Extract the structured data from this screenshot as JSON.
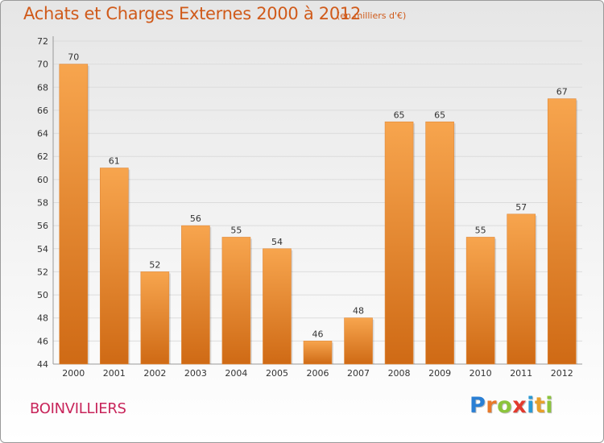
{
  "header": {
    "title": "Achats et Charges Externes 2000 à 2012",
    "subtitle": "(en milliers d'€)"
  },
  "footer": {
    "location": "BOINVILLIERS",
    "brand_letters": [
      {
        "char": "P",
        "color": "#2a7fd4"
      },
      {
        "char": "r",
        "color": "#e8792a"
      },
      {
        "char": "o",
        "color": "#8cc43c"
      },
      {
        "char": "x",
        "color": "#e23a2e"
      },
      {
        "char": "i",
        "color": "#2a9ad4"
      },
      {
        "char": "t",
        "color": "#e8a02a"
      },
      {
        "char": "i",
        "color": "#8cc43c"
      }
    ]
  },
  "colors": {
    "bar_top": "#f7a54e",
    "bar_bottom": "#cf6a15",
    "title": "#d05a1a",
    "location": "#c8245a"
  },
  "chart_data": {
    "type": "bar",
    "title": "Achats et Charges Externes 2000 à 2012",
    "subtitle": "(en milliers d'€)",
    "categories": [
      "2000",
      "2001",
      "2002",
      "2003",
      "2004",
      "2005",
      "2006",
      "2007",
      "2008",
      "2009",
      "2010",
      "2011",
      "2012"
    ],
    "values": [
      70,
      61,
      52,
      56,
      55,
      54,
      46,
      48,
      65,
      65,
      55,
      57,
      67
    ],
    "ylim": [
      44,
      72
    ],
    "yticks": [
      44,
      46,
      48,
      50,
      52,
      54,
      56,
      58,
      60,
      62,
      64,
      66,
      68,
      70,
      72
    ],
    "grid": true,
    "data_labels": true,
    "xlabel": "",
    "ylabel": ""
  }
}
